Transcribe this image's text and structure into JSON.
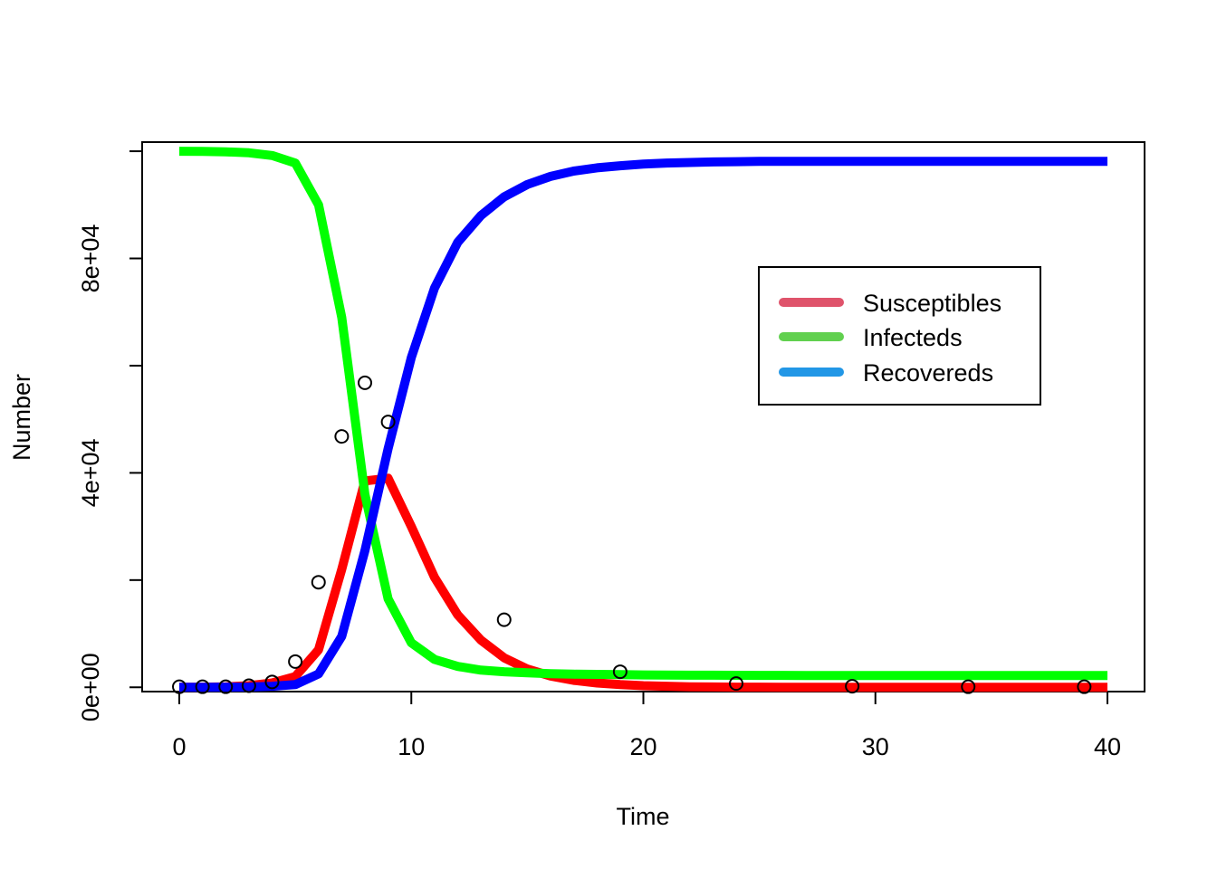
{
  "chart_data": {
    "type": "line",
    "title": "",
    "xlabel": "Time",
    "ylabel": "Number",
    "xlim": [
      -1.6,
      41.6
    ],
    "ylim": [
      -800,
      101700
    ],
    "x_ticks": [
      0,
      10,
      20,
      30,
      40
    ],
    "x_tick_labels": [
      "0",
      "10",
      "20",
      "30",
      "40"
    ],
    "y_ticks": [
      0,
      20000,
      40000,
      60000,
      80000,
      100000
    ],
    "y_tick_labels": [
      "0e+00",
      "",
      "4e+04",
      "",
      "8e+04",
      ""
    ],
    "grid": false,
    "legend": {
      "placement": "top-right",
      "entries": [
        {
          "label": "Susceptibles",
          "color": "#DF536B"
        },
        {
          "label": "Infecteds",
          "color": "#61D04F"
        },
        {
          "label": "Recovereds",
          "color": "#2297E6"
        }
      ]
    },
    "x": [
      0,
      1,
      2,
      3,
      4,
      5,
      6,
      7,
      8,
      9,
      10,
      11,
      12,
      13,
      14,
      15,
      16,
      17,
      18,
      19,
      20,
      21,
      22,
      23,
      24,
      25,
      26,
      27,
      28,
      29,
      30,
      31,
      32,
      33,
      34,
      35,
      36,
      37,
      38,
      39,
      40
    ],
    "series": [
      {
        "color": "#FF0000",
        "values": [
          10,
          30,
          100,
          300,
          800,
          2000,
          7000,
          22000,
          38500,
          39000,
          30000,
          20500,
          13500,
          8800,
          5500,
          3400,
          2100,
          1300,
          800,
          500,
          300,
          200,
          100,
          60,
          30,
          20,
          10,
          5,
          0,
          0,
          0,
          0,
          0,
          0,
          0,
          0,
          0,
          0,
          0,
          0,
          0
        ]
      },
      {
        "color": "#00FF00",
        "values": [
          100000,
          99970,
          99900,
          99700,
          99200,
          97800,
          90000,
          69000,
          36000,
          16500,
          8300,
          5200,
          3900,
          3200,
          2900,
          2700,
          2550,
          2450,
          2400,
          2350,
          2300,
          2280,
          2260,
          2250,
          2240,
          2230,
          2220,
          2210,
          2200,
          2200,
          2200,
          2200,
          2200,
          2200,
          2200,
          2200,
          2200,
          2200,
          2200,
          2200,
          2200
        ]
      },
      {
        "color": "#0000FF",
        "values": [
          0,
          0,
          20,
          50,
          200,
          500,
          2500,
          9500,
          25500,
          44500,
          61500,
          74500,
          83000,
          88000,
          91500,
          93800,
          95300,
          96300,
          96900,
          97300,
          97600,
          97800,
          97900,
          98000,
          98050,
          98100,
          98100,
          98100,
          98100,
          98100,
          98100,
          98100,
          98100,
          98100,
          98100,
          98100,
          98100,
          98100,
          98100,
          98100,
          98100
        ]
      }
    ],
    "points": {
      "x": [
        0,
        1,
        2,
        3,
        4,
        5,
        6,
        7,
        8,
        9,
        14,
        19,
        24,
        29,
        34,
        39
      ],
      "y": [
        100,
        100,
        100,
        300,
        1000,
        4800,
        19600,
        46800,
        56800,
        49500,
        12600,
        2900,
        700,
        200,
        100,
        100
      ]
    }
  }
}
